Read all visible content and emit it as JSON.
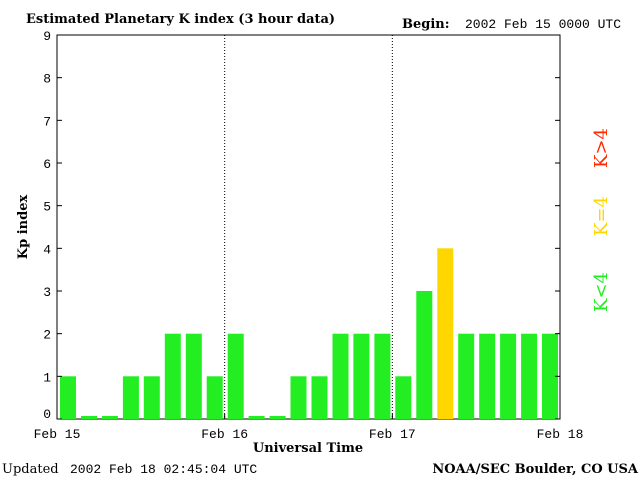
{
  "header": {
    "title": "Estimated Planetary K index (3 hour data)",
    "begin_label": "Begin:",
    "begin_value": "2002 Feb 15 0000 UTC"
  },
  "footer": {
    "updated_label": "Updated",
    "updated_value": "2002 Feb 18 02:45:04 UTC",
    "credit": "NOAA/SEC Boulder, CO USA"
  },
  "legend": {
    "above": "K>4",
    "equal": "K=4",
    "below": "K<4"
  },
  "colors": {
    "below": "#22ee22",
    "equal": "#ffd700",
    "above": "#ff2a00"
  },
  "chart_data": {
    "type": "bar",
    "xlabel": "Universal Time",
    "ylabel": "Kp index",
    "ylim": [
      0,
      9
    ],
    "yticks": [
      "0",
      "1",
      "2",
      "3",
      "4",
      "5",
      "6",
      "7",
      "8",
      "9"
    ],
    "xticks": [
      "Feb 15",
      "Feb 16",
      "Feb 17",
      "Feb 18"
    ],
    "day_separators": [
      "Feb 16",
      "Feb 17"
    ],
    "grid": false,
    "legend_position": "right",
    "values": [
      1,
      0,
      0,
      1,
      1,
      2,
      2,
      1,
      2,
      0,
      0,
      1,
      1,
      2,
      2,
      2,
      1,
      3,
      4,
      2,
      2,
      2,
      2,
      2
    ]
  }
}
